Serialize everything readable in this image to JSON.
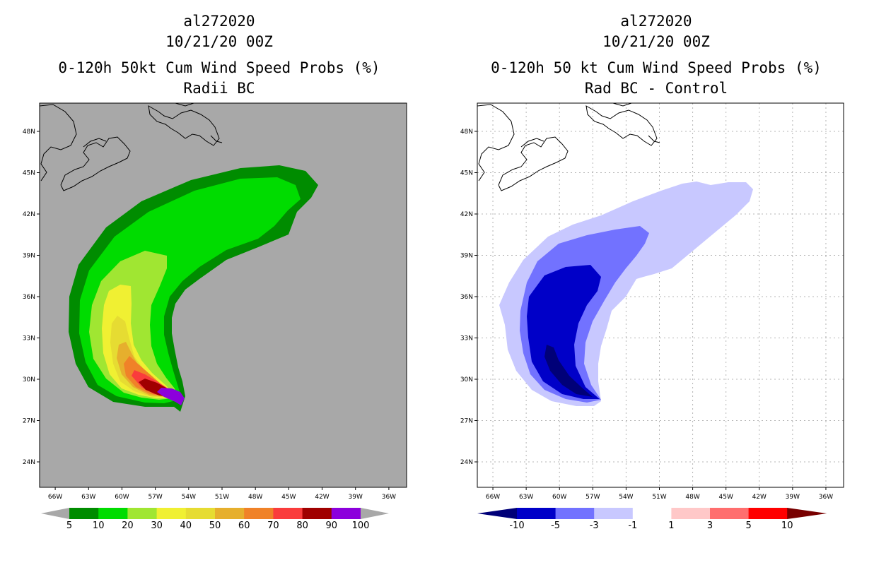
{
  "left_panel": {
    "storm_id": "al272020",
    "datetime": "10/21/20 00Z",
    "product": "0-120h 50kt Cum Wind Speed Probs (%)",
    "subtitle": "Radii BC",
    "background_color": "#a8a8a8",
    "colorbar": {
      "labels": [
        "5",
        "10",
        "20",
        "30",
        "40",
        "50",
        "60",
        "70",
        "80",
        "90",
        "100"
      ],
      "colors": [
        "#008c00",
        "#00dc00",
        "#a0e632",
        "#f0f032",
        "#e6dc32",
        "#e6af2d",
        "#f08228",
        "#fa3c3c",
        "#a00000",
        "#8c00dc"
      ]
    }
  },
  "right_panel": {
    "storm_id": "al272020",
    "datetime": "10/21/20 00Z",
    "product": "0-120h 50 kt Cum Wind Speed Probs (%)",
    "subtitle": "Rad BC - Control",
    "background_color": "#ffffff",
    "colorbar": {
      "labels": [
        "-10",
        "-5",
        "-3",
        "-1",
        "1",
        "3",
        "5",
        "10"
      ],
      "colors": [
        "#0000c8",
        "#7272ff",
        "#c8c8ff",
        "#ffffff",
        "#ffc8c8",
        "#ff6e6e",
        "#ff0000"
      ],
      "low_end_color": "#000078",
      "high_end_color": "#780000"
    }
  },
  "axes": {
    "lon_labels": [
      "66W",
      "63W",
      "60W",
      "57W",
      "54W",
      "51W",
      "48W",
      "45W",
      "42W",
      "39W",
      "36W"
    ],
    "lat_labels": [
      "48N",
      "45N",
      "42N",
      "39N",
      "36N",
      "33N",
      "30N",
      "27N",
      "24N"
    ]
  }
}
